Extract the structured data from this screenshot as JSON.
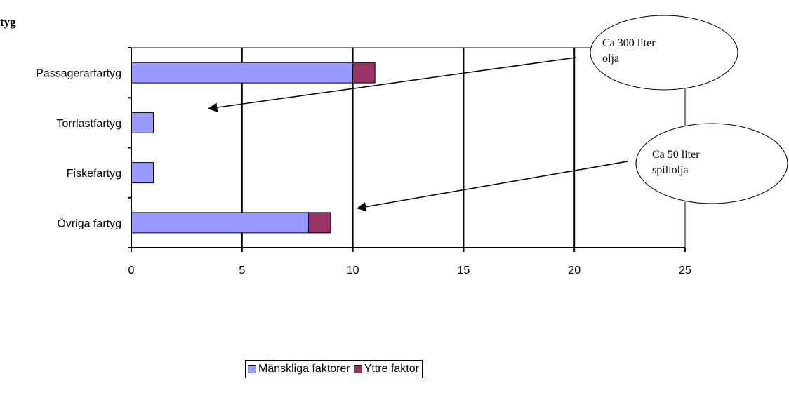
{
  "heading_fragment": "tyg",
  "colors": {
    "human": "#9999FF",
    "external": "#993366",
    "gridline": "#000000",
    "plot_border": "#808080"
  },
  "chart_data": {
    "type": "bar",
    "orientation": "horizontal",
    "stacked": true,
    "categories": [
      "Passagerarfartyg",
      "Torrlastfartyg",
      "Fiskefartyg",
      "Övriga fartyg"
    ],
    "series": [
      {
        "name": "Mänskliga faktorer",
        "values": [
          10,
          1,
          1,
          8
        ]
      },
      {
        "name": "Yttre faktor",
        "values": [
          1,
          0,
          0,
          1
        ]
      }
    ],
    "xlim": [
      0,
      25
    ],
    "xticks": [
      0,
      5,
      10,
      15,
      20,
      25
    ],
    "grid": "vertical major gridlines",
    "legend_position": "bottom",
    "annotations": [
      {
        "text_lines": [
          "Ca 300 liter",
          "olja"
        ],
        "points_to": "Passagerarfartyg"
      },
      {
        "text_lines": [
          "Ca 50 liter",
          "spillolja"
        ],
        "points_to": "Övriga fartyg"
      }
    ]
  },
  "legend": {
    "items": [
      "Mänskliga faktorer",
      "Yttre faktor"
    ]
  }
}
